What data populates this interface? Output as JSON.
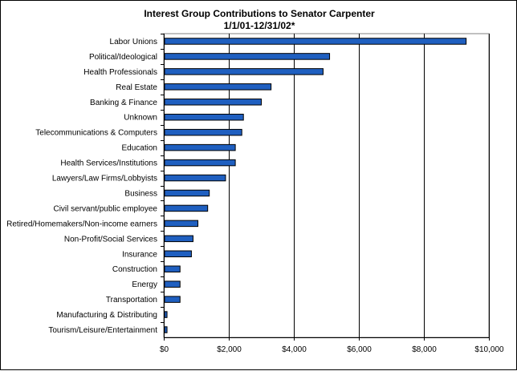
{
  "chart_data": {
    "type": "bar",
    "orientation": "horizontal",
    "title": "Interest Group Contributions to Senator Carpenter",
    "subtitle": "1/1/01-12/31/02*",
    "xlabel": "",
    "ylabel": "",
    "xlim": [
      0,
      10000
    ],
    "x_ticks": [
      "$0",
      "$2,000",
      "$4,000",
      "$6,000",
      "$8,000",
      "$10,000"
    ],
    "grid": "vertical gridlines",
    "legend": "none",
    "bar_color": "#1f5fc0",
    "categories": [
      "Labor Unions",
      "Political/Ideological",
      "Health Professionals",
      "Real Estate",
      "Banking & Finance",
      "Unknown",
      "Telecommunications & Computers",
      "Education",
      "Health Services/Institutions",
      "Lawyers/Law Firms/Lobbyists",
      "Business",
      "Civil servant/public employee",
      "Retired/Homemakers/Non-income earners",
      "Non-Profit/Social Services",
      "Insurance",
      "Construction",
      "Energy",
      "Transportation",
      "Manufacturing & Distributing",
      "Tourism/Leisure/Entertainment"
    ],
    "values": [
      9300,
      5100,
      4900,
      3300,
      3000,
      2450,
      2400,
      2200,
      2200,
      1900,
      1400,
      1350,
      1050,
      900,
      850,
      500,
      500,
      500,
      100,
      100
    ]
  }
}
